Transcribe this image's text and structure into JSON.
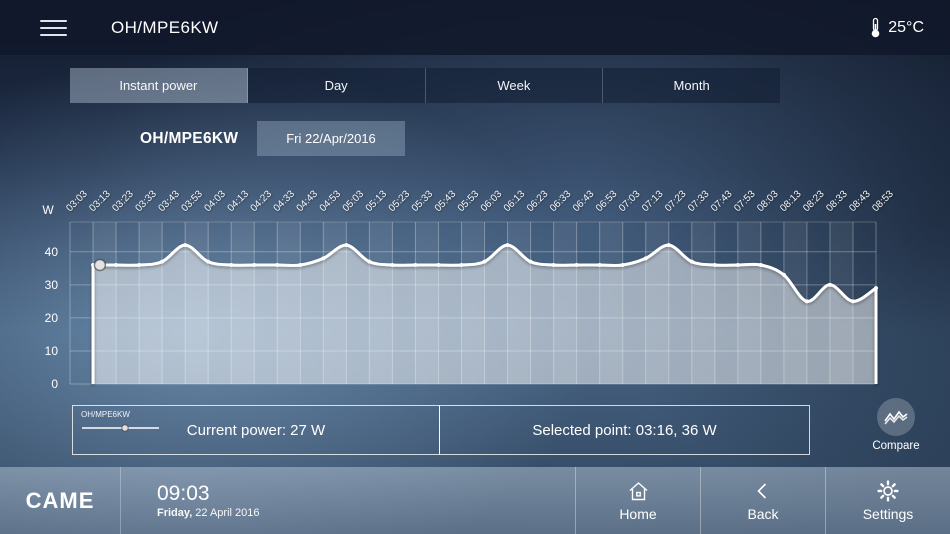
{
  "topbar": {
    "title": "OH/MPE6KW",
    "temperature": "25°C"
  },
  "tabs": {
    "items": [
      {
        "label": "Instant power",
        "active": true
      },
      {
        "label": "Day",
        "active": false
      },
      {
        "label": "Week",
        "active": false
      },
      {
        "label": "Month",
        "active": false
      }
    ]
  },
  "subheader": {
    "device": "OH/MPE6KW",
    "date_label": "Fri 22/Apr/2016"
  },
  "chart_data": {
    "type": "area",
    "title": "Instant power",
    "ylabel": "W",
    "ylim": [
      0,
      49
    ],
    "yticks": [
      0,
      10,
      20,
      30,
      40
    ],
    "x": [
      "03:03",
      "03:13",
      "03:23",
      "03:33",
      "03:43",
      "03:53",
      "04:03",
      "04:13",
      "04:23",
      "04:33",
      "04:43",
      "04:53",
      "05:03",
      "05:13",
      "05:23",
      "05:33",
      "05:43",
      "05:53",
      "06:03",
      "06:13",
      "06:23",
      "06:33",
      "06:43",
      "06:53",
      "07:03",
      "07:13",
      "07:23",
      "07:33",
      "07:43",
      "07:53",
      "08:03",
      "08:13",
      "08:23",
      "08:33",
      "08:43",
      "08:53"
    ],
    "values": [
      null,
      36,
      36,
      36,
      37,
      42,
      37,
      36,
      36,
      36,
      36,
      38,
      42,
      37,
      36,
      36,
      36,
      36,
      37,
      42,
      37,
      36,
      36,
      36,
      36,
      38,
      42,
      37,
      36,
      36,
      36,
      33,
      25,
      30,
      25,
      29
    ],
    "selected": {
      "time": "03:16",
      "value": 36
    },
    "line_color": "#ffffff",
    "fill_color": "rgba(255,255,255,0.50)",
    "grid": true,
    "legend_position": "bottom-left"
  },
  "info": {
    "legend_label": "OH/MPE6KW",
    "current_power": "Current power: 27 W",
    "selected_point": "Selected point:  03:16,  36 W",
    "compare_label": "Compare"
  },
  "footer": {
    "logo": "CAME",
    "time": "09:03",
    "day": "Friday,",
    "date": "22 April 2016",
    "buttons": [
      {
        "label": "Home"
      },
      {
        "label": "Back"
      },
      {
        "label": "Settings"
      }
    ]
  }
}
